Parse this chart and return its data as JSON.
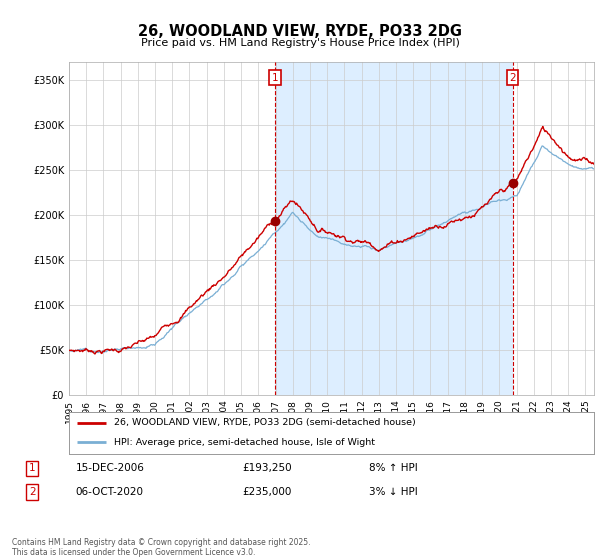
{
  "title": "26, WOODLAND VIEW, RYDE, PO33 2DG",
  "subtitle": "Price paid vs. HM Land Registry's House Price Index (HPI)",
  "ylim": [
    0,
    370000
  ],
  "xlim_start": 1995.0,
  "xlim_end": 2025.5,
  "sale1_date": "15-DEC-2006",
  "sale1_price": 193250,
  "sale1_label": "£193,250",
  "sale1_hpi": "8% ↑ HPI",
  "sale1_x": 2006.96,
  "sale2_date": "06-OCT-2020",
  "sale2_price": 235000,
  "sale2_label": "£235,000",
  "sale2_hpi": "3% ↓ HPI",
  "sale2_x": 2020.77,
  "legend_line1": "26, WOODLAND VIEW, RYDE, PO33 2DG (semi-detached house)",
  "legend_line2": "HPI: Average price, semi-detached house, Isle of Wight",
  "footnote": "Contains HM Land Registry data © Crown copyright and database right 2025.\nThis data is licensed under the Open Government Licence v3.0.",
  "line_red": "#cc0000",
  "line_blue": "#7aafd4",
  "shade_color": "#ddeeff",
  "bg_color": "#ffffff",
  "grid_color": "#cccccc",
  "vline_color": "#cc0000",
  "marker_box_color": "#cc0000",
  "dot_color": "#990000"
}
